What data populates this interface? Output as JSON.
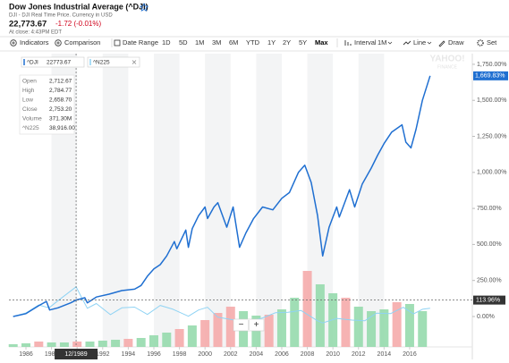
{
  "header": {
    "title": "Dow Jones Industrial Average (^DJI)",
    "subtitle": "DJI - DJI Real Time Price. Currency in USD",
    "price": "22,773.67",
    "change": "-1.72 (-0.01%)",
    "time": "At close: 4:43PM EDT"
  },
  "toolbar": {
    "indicators": "Indicators",
    "comparison": "Comparison",
    "date_range": "Date Range",
    "ranges": [
      "1D",
      "5D",
      "1M",
      "3M",
      "6M",
      "YTD",
      "1Y",
      "2Y",
      "5Y",
      "Max"
    ],
    "active_range": 9,
    "interval": "Interval",
    "interval_value": "1M",
    "chart_type": "Line",
    "draw": "Draw",
    "settings": "Set"
  },
  "watermark": [
    "YAHOO!",
    "FINANCE"
  ],
  "tooltip": [
    [
      "Open",
      "2,712.67"
    ],
    [
      "High",
      "2,784.77"
    ],
    [
      "Low",
      "2,658.70"
    ],
    [
      "Close",
      "2,753.20"
    ],
    [
      "Volume",
      "371.30M"
    ],
    [
      "^N225",
      "38,916.00"
    ]
  ],
  "zoom": [
    "−",
    "+"
  ],
  "crosshair": {
    "x": 1989.92,
    "x_label": "12/1989",
    "y": 113.96,
    "y_label": "113.96%"
  },
  "chart_data": {
    "type": "line",
    "xlim": [
      1984.67,
      2020.9
    ],
    "xticks": [
      1986,
      1988,
      1990,
      1992,
      1994,
      1996,
      1998,
      2000,
      2002,
      2004,
      2006,
      2008,
      2010,
      2012,
      2014,
      2016
    ],
    "ylim": [
      -211,
      1824
    ],
    "yticks": [
      {
        "value": 0,
        "label": "0.00%"
      },
      {
        "value": 250,
        "label": "250.00%"
      },
      {
        "value": 500,
        "label": "500.00%"
      },
      {
        "value": 750,
        "label": "750.00%"
      },
      {
        "value": 1000,
        "label": "1,000.00%"
      },
      {
        "value": 1250,
        "label": "1,250.00%"
      },
      {
        "value": 1500,
        "label": "1,500.00%"
      },
      {
        "value": 1750,
        "label": "1,750.00%"
      }
    ],
    "grid": false,
    "series": [
      {
        "name": "^DJI",
        "legend_value": "22773.67",
        "color": "#1f6fd1",
        "last_label": "1,669.83%",
        "x": [
          1985,
          1986,
          1987,
          1987.6,
          1987.85,
          1988.5,
          1989.5,
          1989.92,
          1990.6,
          1990.8,
          1991.5,
          1992.5,
          1993.5,
          1994.5,
          1995,
          1995.5,
          1996,
          1996.5,
          1997,
          1997.6,
          1997.8,
          1998.5,
          1998.7,
          1999,
          1999.5,
          2000,
          2000.2,
          2000.7,
          2001,
          2001.7,
          2002.2,
          2002.7,
          2003.2,
          2003.8,
          2004.5,
          2005.3,
          2006,
          2006.6,
          2007.3,
          2007.8,
          2008.3,
          2008.8,
          2009.2,
          2009.7,
          2010.3,
          2010.5,
          2011.3,
          2011.7,
          2012.3,
          2013,
          2013.5,
          2014,
          2014.6,
          2015.4,
          2015.7,
          2016.1,
          2016.5,
          2017,
          2017.6
        ],
        "values": [
          0,
          20,
          75,
          105,
          45,
          60,
          95,
          113.96,
          130,
          95,
          135,
          155,
          180,
          190,
          215,
          280,
          330,
          360,
          420,
          520,
          470,
          600,
          480,
          610,
          700,
          760,
          680,
          760,
          790,
          620,
          760,
          480,
          580,
          680,
          760,
          740,
          820,
          860,
          1000,
          1050,
          930,
          700,
          420,
          620,
          760,
          690,
          880,
          760,
          920,
          1030,
          1120,
          1200,
          1280,
          1330,
          1210,
          1170,
          1300,
          1500,
          1669.83
        ]
      },
      {
        "name": "^N225",
        "color": "#8fd3f4",
        "x": [
          1985,
          1986,
          1987,
          1987.8,
          1988.5,
          1989.92,
          1990.3,
          1990.8,
          1991.5,
          1992.6,
          1993.5,
          1994.5,
          1995.5,
          1996.5,
          1997.5,
          1998.7,
          1999.5,
          2000.2,
          2001,
          2002,
          2003.3,
          2004.5,
          2005.5,
          2006.5,
          2007.5,
          2008.8,
          2009.2,
          2010.3,
          2011.5,
          2012.5,
          2013.4,
          2014.5,
          2015.5,
          2016.3,
          2017,
          2017.6
        ],
        "values": [
          0,
          25,
          80,
          60,
          110,
          206,
          140,
          57,
          90,
          13,
          60,
          65,
          14,
          77,
          50,
          2,
          45,
          64,
          -5,
          -20,
          -40,
          -10,
          26,
          30,
          42,
          -30,
          -45,
          -13,
          -25,
          -29,
          23,
          20,
          64,
          18,
          50,
          57
        ]
      }
    ],
    "volume": {
      "x": [
        1985,
        1986,
        1987,
        1988,
        1989,
        1990,
        1991,
        1992,
        1993,
        1994,
        1995,
        1996,
        1997,
        1998,
        1999,
        2000,
        2001,
        2002,
        2003,
        2004,
        2005,
        2006,
        2007,
        2008,
        2009,
        2010,
        2011,
        2012,
        2013,
        2014,
        2015,
        2016,
        2017
      ],
      "values": [
        3,
        4,
        6,
        5,
        5,
        6,
        6,
        7,
        8,
        9,
        10,
        13,
        16,
        20,
        24,
        30,
        38,
        45,
        40,
        35,
        36,
        42,
        55,
        85,
        70,
        60,
        55,
        45,
        40,
        42,
        50,
        48,
        40
      ],
      "colors": [
        "#8fd8a8",
        "#8fd8a8",
        "#f4a6a6",
        "#8fd8a8",
        "#8fd8a8",
        "#f4a6a6",
        "#8fd8a8",
        "#8fd8a8",
        "#8fd8a8",
        "#f4a6a6",
        "#8fd8a8",
        "#8fd8a8",
        "#8fd8a8",
        "#f4a6a6",
        "#8fd8a8",
        "#f4a6a6",
        "#f4a6a6",
        "#f4a6a6",
        "#8fd8a8",
        "#8fd8a8",
        "#f4a6a6",
        "#8fd8a8",
        "#8fd8a8",
        "#f4a6a6",
        "#8fd8a8",
        "#8fd8a8",
        "#f4a6a6",
        "#8fd8a8",
        "#8fd8a8",
        "#8fd8a8",
        "#f4a6a6",
        "#8fd8a8",
        "#8fd8a8"
      ]
    }
  }
}
